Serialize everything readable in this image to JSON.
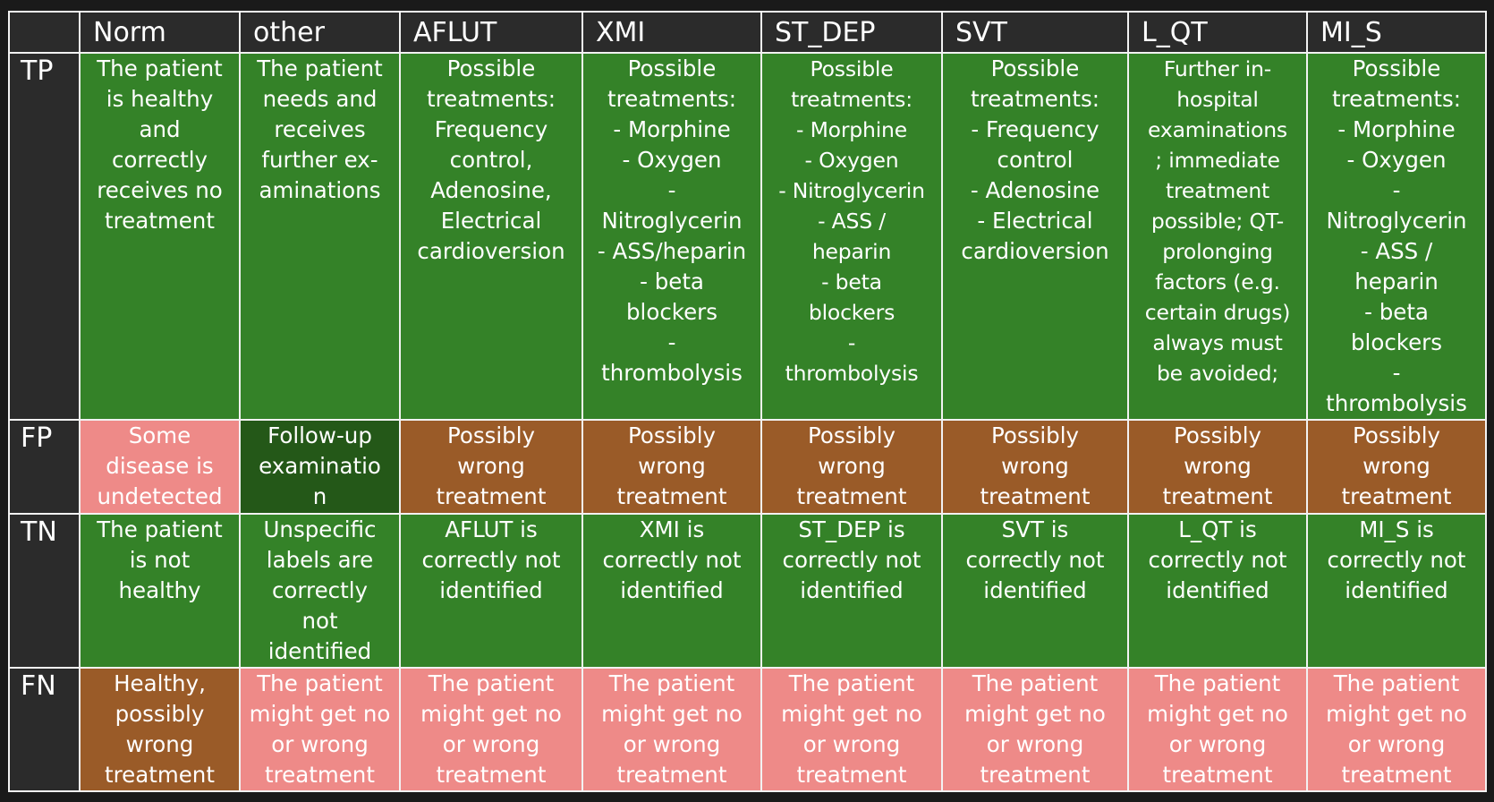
{
  "columns": [
    "Norm",
    "other",
    "AFLUT",
    "XMI",
    "ST_DEP",
    "SVT",
    "L_QT",
    "MI_S"
  ],
  "rows": [
    {
      "label": "TP",
      "cells": [
        {
          "text": "The patient\nis healthy\nand\ncorrectly\nreceives no\ntreatment",
          "color": "#348228"
        },
        {
          "text": "The patient\nneeds and\nreceives\nfurther ex-\naminations",
          "color": "#348228"
        },
        {
          "text": "Possible\ntreatments:\nFrequency\ncontrol,\nAdenosine,\nElectrical\ncardioversion",
          "color": "#348228"
        },
        {
          "text": "Possible\ntreatments:\n- Morphine\n- Oxygen\n-\nNitroglycerin\n- ASS/heparin\n- beta\nblockers\n-\nthrombolysis",
          "color": "#348228"
        },
        {
          "text": "Possible\ntreatments:\n- Morphine\n- Oxygen\n- Nitroglycerin\n- ASS /\nheparin\n- beta\nblockers\n-\nthrombolysis",
          "color": "#348228"
        },
        {
          "text": "Possible\ntreatments:\n- Frequency\ncontrol\n- Adenosine\n- Electrical\ncardioversion",
          "color": "#348228"
        },
        {
          "text": "Further in-\nhospital\nexaminations\n; immediate\ntreatment\npossible; QT-\nprolonging\nfactors (e.g.\ncertain drugs)\nalways must\nbe avoided;",
          "color": "#348228"
        },
        {
          "text": "Possible\ntreatments:\n- Morphine\n- Oxygen\n-\nNitroglycerin\n- ASS /\nheparin\n- beta\nblockers\n-\nthrombolysis",
          "color": "#348228"
        }
      ]
    },
    {
      "label": "FP",
      "cells": [
        {
          "text": "Some\ndisease is\nundetected",
          "color": "#ee8a88"
        },
        {
          "text": "Follow-up\nexaminatio\nn",
          "color": "#245818"
        },
        {
          "text": "Possibly\nwrong\ntreatment",
          "color": "#9a5b28"
        },
        {
          "text": "Possibly\nwrong\ntreatment",
          "color": "#9a5b28"
        },
        {
          "text": "Possibly\nwrong\ntreatment",
          "color": "#9a5b28"
        },
        {
          "text": "Possibly\nwrong\ntreatment",
          "color": "#9a5b28"
        },
        {
          "text": "Possibly\nwrong\ntreatment",
          "color": "#9a5b28"
        },
        {
          "text": "Possibly\nwrong\ntreatment",
          "color": "#9a5b28"
        }
      ]
    },
    {
      "label": "TN",
      "cells": [
        {
          "text": "The patient\nis not\nhealthy",
          "color": "#348228"
        },
        {
          "text": "Unspecific\nlabels are\ncorrectly\nnot\nidentified",
          "color": "#348228"
        },
        {
          "text": "AFLUT is\ncorrectly not\nidentified",
          "color": "#348228"
        },
        {
          "text": "XMI is\ncorrectly not\nidentified",
          "color": "#348228"
        },
        {
          "text": "ST_DEP is\ncorrectly not\nidentified",
          "color": "#348228"
        },
        {
          "text": "SVT is\ncorrectly not\nidentified",
          "color": "#348228"
        },
        {
          "text": "L_QT is\ncorrectly not\nidentified",
          "color": "#348228"
        },
        {
          "text": "MI_S is\ncorrectly not\nidentified",
          "color": "#348228"
        }
      ]
    },
    {
      "label": "FN",
      "cells": [
        {
          "text": "Healthy,\npossibly\nwrong\ntreatment",
          "color": "#9a5b28"
        },
        {
          "text": "The patient\nmight get no\nor wrong\ntreatment",
          "color": "#ee8a88"
        },
        {
          "text": "The patient\nmight get no\nor wrong\ntreatment",
          "color": "#ee8a88"
        },
        {
          "text": "The patient\nmight get no\nor wrong\ntreatment",
          "color": "#ee8a88"
        },
        {
          "text": "The patient\nmight get no\nor wrong\ntreatment",
          "color": "#ee8a88"
        },
        {
          "text": "The patient\nmight get no\nor wrong\ntreatment",
          "color": "#ee8a88"
        },
        {
          "text": "The patient\nmight get no\nor wrong\ntreatment",
          "color": "#ee8a88"
        },
        {
          "text": "The patient\nmight get no\nor wrong\ntreatment",
          "color": "#ee8a88"
        }
      ]
    }
  ]
}
